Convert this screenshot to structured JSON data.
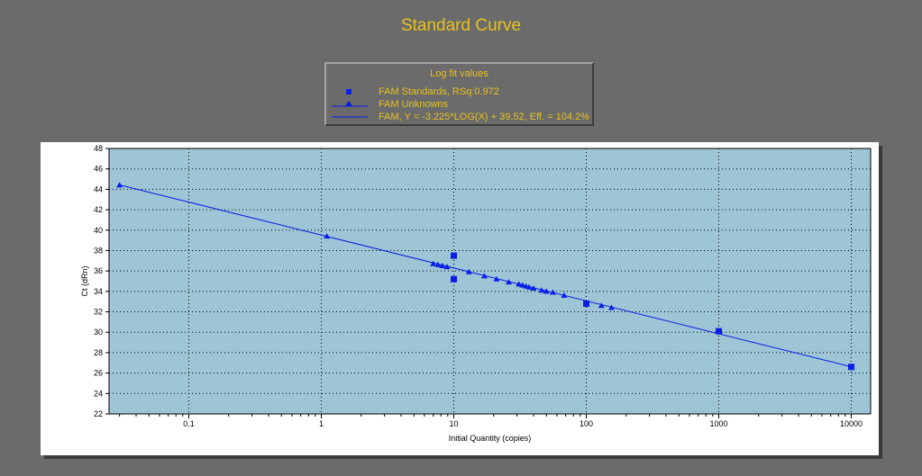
{
  "title": "Standard Curve",
  "legend": {
    "title": "Log fit values",
    "entries": [
      {
        "label": "FAM Standards, RSq:0.972",
        "symbol": "square-icon"
      },
      {
        "label": "FAM Unknowns",
        "symbol": "triangle-line-icon"
      },
      {
        "label": "FAM, Y = -3.225*LOG(X) + 39.52, Eff. = 104.2%",
        "symbol": "line-icon"
      }
    ]
  },
  "colors": {
    "background": "#6b6b6b",
    "plot_area": "#9dc5d6",
    "accent_text": "#e8c21a",
    "series": "#0a1ee6"
  },
  "chart_data": {
    "type": "scatter",
    "title": "Standard Curve",
    "xlabel": "Initial Quantity (copies)",
    "ylabel": "Ct (dRn)",
    "x_scale": "log",
    "xlim": [
      0.025,
      14000
    ],
    "ylim": [
      22,
      48
    ],
    "x_ticks": [
      0.1,
      1,
      10,
      100,
      1000,
      10000
    ],
    "x_tick_labels": [
      "0.1",
      "1",
      "10",
      "100",
      "1000",
      "10000"
    ],
    "y_ticks": [
      22,
      24,
      26,
      28,
      30,
      32,
      34,
      36,
      38,
      40,
      42,
      44,
      46,
      48
    ],
    "grid": true,
    "legend_position": "top-center",
    "series": [
      {
        "name": "FAM Standards, RSq:0.972",
        "marker": "square",
        "points": [
          {
            "x": 10,
            "y": 37.5
          },
          {
            "x": 10,
            "y": 35.2
          },
          {
            "x": 100,
            "y": 32.8
          },
          {
            "x": 1000,
            "y": 30.1
          },
          {
            "x": 10000,
            "y": 26.6
          }
        ]
      },
      {
        "name": "FAM Unknowns",
        "marker": "triangle",
        "points": [
          {
            "x": 0.03,
            "y": 44.4
          },
          {
            "x": 1.1,
            "y": 39.4
          },
          {
            "x": 7,
            "y": 36.7
          },
          {
            "x": 7.6,
            "y": 36.6
          },
          {
            "x": 8.2,
            "y": 36.5
          },
          {
            "x": 8.9,
            "y": 36.4
          },
          {
            "x": 13,
            "y": 35.9
          },
          {
            "x": 17,
            "y": 35.5
          },
          {
            "x": 21,
            "y": 35.2
          },
          {
            "x": 26,
            "y": 34.9
          },
          {
            "x": 31,
            "y": 34.7
          },
          {
            "x": 33,
            "y": 34.6
          },
          {
            "x": 35,
            "y": 34.5
          },
          {
            "x": 37,
            "y": 34.4
          },
          {
            "x": 40,
            "y": 34.3
          },
          {
            "x": 46,
            "y": 34.1
          },
          {
            "x": 50,
            "y": 34.0
          },
          {
            "x": 56,
            "y": 33.9
          },
          {
            "x": 68,
            "y": 33.6
          },
          {
            "x": 130,
            "y": 32.6
          },
          {
            "x": 155,
            "y": 32.4
          }
        ]
      },
      {
        "name": "FAM, Y = -3.225*LOG(X) + 39.52, Eff. = 104.2%",
        "type": "line",
        "slope": -3.225,
        "intercept": 39.52,
        "x_range": [
          0.03,
          10000
        ]
      }
    ]
  }
}
